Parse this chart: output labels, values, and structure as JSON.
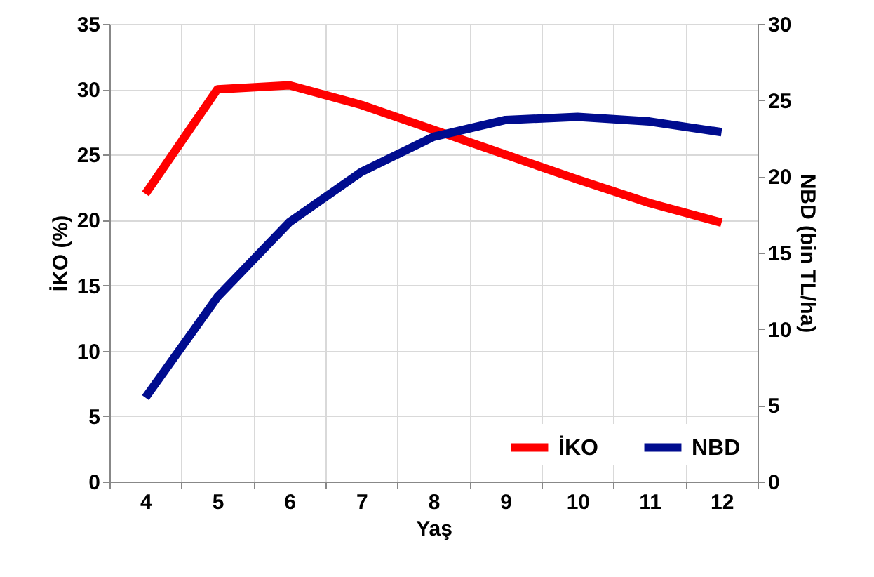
{
  "chart_data": {
    "type": "line",
    "xlabel": "Yaş",
    "ylabel": "İKO (%)",
    "y2label": "NBD (bin TL/ha)",
    "categories": [
      "4",
      "5",
      "6",
      "7",
      "8",
      "9",
      "10",
      "11",
      "12"
    ],
    "series": [
      {
        "name": "İKO",
        "color": "#ff0000",
        "values": [
          22.0,
          30.0,
          30.3,
          28.8,
          26.9,
          25.0,
          23.1,
          21.3,
          19.8
        ]
      },
      {
        "name": "NBD",
        "color": "#000c8f",
        "axis": "y2",
        "values": [
          5.5,
          12.1,
          17.0,
          20.3,
          22.6,
          23.7,
          23.9,
          23.6,
          22.9
        ]
      }
    ],
    "ylim": [
      0,
      35
    ],
    "yticks": [
      0,
      5,
      10,
      15,
      20,
      25,
      30,
      35
    ],
    "y2lim": [
      0,
      30
    ],
    "y2ticks": [
      0,
      5,
      10,
      15,
      20,
      25,
      30
    ],
    "grid": true,
    "legend": "bottom right",
    "marker": "none",
    "line_style": "solid"
  }
}
